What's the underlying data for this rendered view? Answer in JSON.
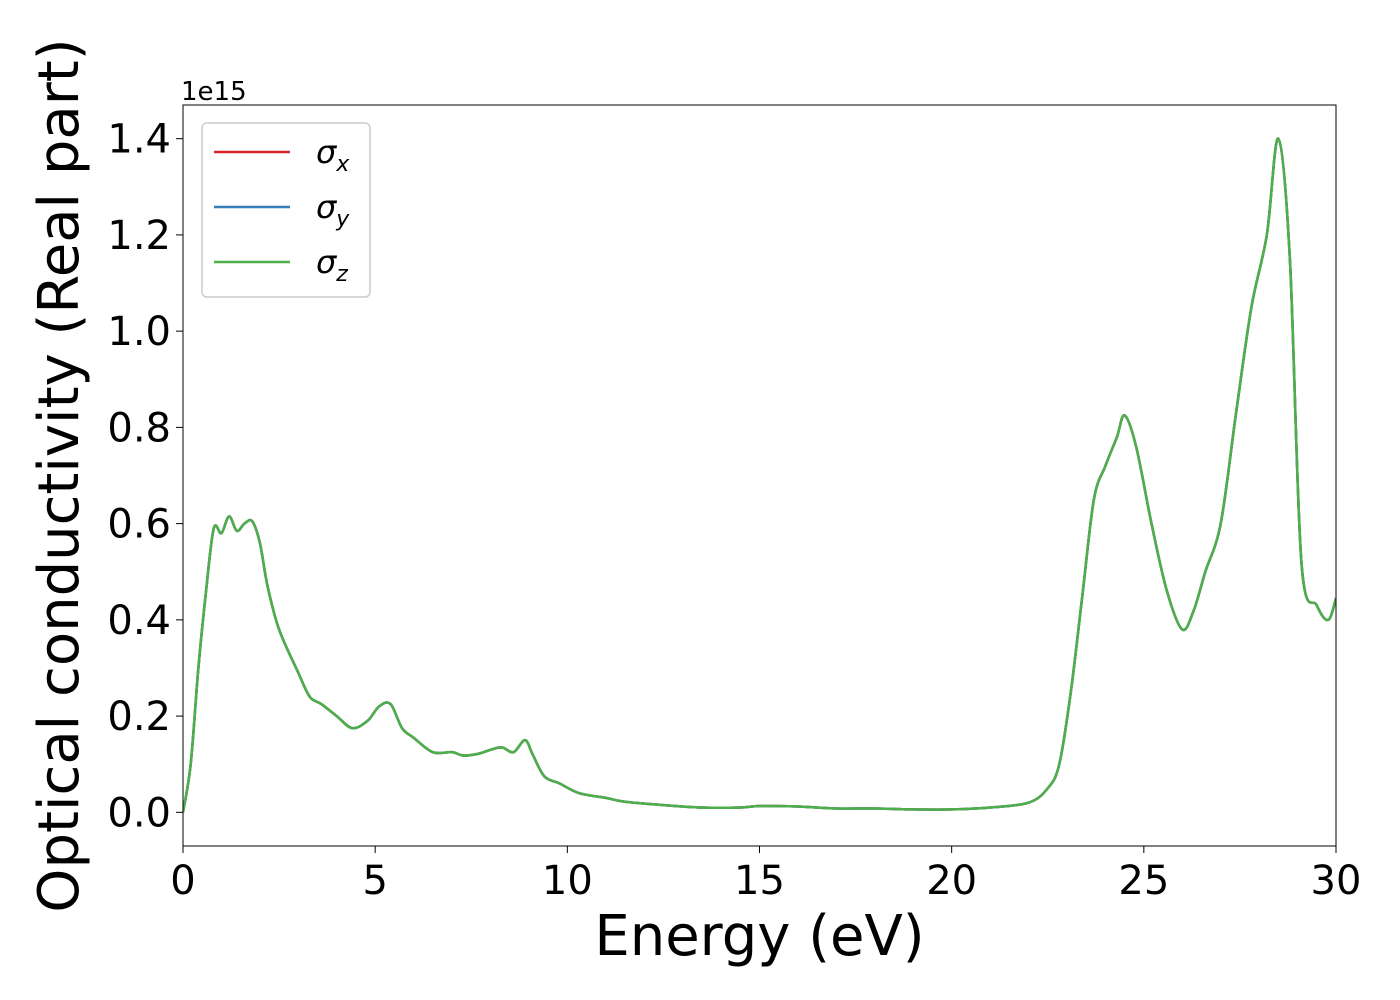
{
  "chart_data": {
    "type": "line",
    "title": "",
    "xlabel": "Energy (eV)",
    "ylabel": "Optical conductivity (Real part)",
    "y_offset_label": "1e15",
    "xlim": [
      0,
      30
    ],
    "ylim": [
      -0.07,
      1.47
    ],
    "xticks": [
      0,
      5,
      10,
      15,
      20,
      25,
      30
    ],
    "xtick_labels": [
      "0",
      "5",
      "10",
      "15",
      "20",
      "25",
      "30"
    ],
    "yticks": [
      0.0,
      0.2,
      0.4,
      0.6,
      0.8,
      1.0,
      1.2,
      1.4
    ],
    "ytick_labels": [
      "0.0",
      "0.2",
      "0.4",
      "0.6",
      "0.8",
      "1.0",
      "1.2",
      "1.4"
    ],
    "grid": false,
    "legend_position": "top-left",
    "series": [
      {
        "name": "σx",
        "symbol": "σ",
        "subscript": "x",
        "color": "#d62728",
        "x": [
          0,
          0.2,
          0.4,
          0.6,
          0.8,
          1.0,
          1.2,
          1.4,
          1.6,
          1.8,
          2.0,
          2.2,
          2.5,
          3.0,
          3.3,
          3.6,
          4.0,
          4.4,
          4.8,
          5.1,
          5.4,
          5.7,
          6.0,
          6.5,
          7.0,
          7.3,
          7.7,
          8.0,
          8.3,
          8.6,
          8.9,
          9.1,
          9.4,
          9.8,
          10.3,
          11.0,
          11.5,
          12.5,
          13.5,
          14.5,
          15.0,
          16.0,
          17.0,
          18.0,
          19.0,
          20.0,
          21.0,
          22.0,
          22.5,
          22.8,
          23.1,
          23.4,
          23.7,
          24.0,
          24.3,
          24.5,
          24.8,
          25.2,
          25.6,
          26.0,
          26.3,
          26.6,
          27.0,
          27.4,
          27.8,
          28.2,
          28.5,
          28.8,
          29.1,
          29.5,
          29.8,
          30.0
        ],
        "values": [
          0.0,
          0.1,
          0.3,
          0.46,
          0.59,
          0.58,
          0.615,
          0.585,
          0.6,
          0.605,
          0.56,
          0.47,
          0.38,
          0.29,
          0.24,
          0.225,
          0.2,
          0.175,
          0.19,
          0.22,
          0.225,
          0.175,
          0.155,
          0.125,
          0.125,
          0.118,
          0.122,
          0.13,
          0.135,
          0.125,
          0.15,
          0.12,
          0.075,
          0.06,
          0.04,
          0.03,
          0.022,
          0.015,
          0.01,
          0.01,
          0.013,
          0.012,
          0.008,
          0.008,
          0.006,
          0.006,
          0.01,
          0.02,
          0.05,
          0.1,
          0.25,
          0.45,
          0.65,
          0.72,
          0.78,
          0.825,
          0.76,
          0.6,
          0.46,
          0.38,
          0.42,
          0.5,
          0.6,
          0.83,
          1.05,
          1.2,
          1.4,
          1.15,
          0.52,
          0.43,
          0.4,
          0.445
        ]
      },
      {
        "name": "σy",
        "symbol": "σ",
        "subscript": "y",
        "color": "#377eb8",
        "x": [
          0,
          0.2,
          0.4,
          0.6,
          0.8,
          1.0,
          1.2,
          1.4,
          1.6,
          1.8,
          2.0,
          2.2,
          2.5,
          3.0,
          3.3,
          3.6,
          4.0,
          4.4,
          4.8,
          5.1,
          5.4,
          5.7,
          6.0,
          6.5,
          7.0,
          7.3,
          7.7,
          8.0,
          8.3,
          8.6,
          8.9,
          9.1,
          9.4,
          9.8,
          10.3,
          11.0,
          11.5,
          12.5,
          13.5,
          14.5,
          15.0,
          16.0,
          17.0,
          18.0,
          19.0,
          20.0,
          21.0,
          22.0,
          22.5,
          22.8,
          23.1,
          23.4,
          23.7,
          24.0,
          24.3,
          24.5,
          24.8,
          25.2,
          25.6,
          26.0,
          26.3,
          26.6,
          27.0,
          27.4,
          27.8,
          28.2,
          28.5,
          28.8,
          29.1,
          29.5,
          29.8,
          30.0
        ],
        "values": [
          0.0,
          0.1,
          0.3,
          0.46,
          0.59,
          0.58,
          0.615,
          0.585,
          0.6,
          0.605,
          0.56,
          0.47,
          0.38,
          0.29,
          0.24,
          0.225,
          0.2,
          0.175,
          0.19,
          0.22,
          0.225,
          0.175,
          0.155,
          0.125,
          0.125,
          0.118,
          0.122,
          0.13,
          0.135,
          0.125,
          0.15,
          0.12,
          0.075,
          0.06,
          0.04,
          0.03,
          0.022,
          0.015,
          0.01,
          0.01,
          0.013,
          0.012,
          0.008,
          0.008,
          0.006,
          0.006,
          0.01,
          0.02,
          0.05,
          0.1,
          0.25,
          0.45,
          0.65,
          0.72,
          0.78,
          0.825,
          0.76,
          0.6,
          0.46,
          0.38,
          0.42,
          0.5,
          0.6,
          0.83,
          1.05,
          1.2,
          1.4,
          1.15,
          0.52,
          0.43,
          0.4,
          0.445
        ]
      },
      {
        "name": "σz",
        "symbol": "σ",
        "subscript": "z",
        "color": "#4daf4a",
        "x": [
          0,
          0.2,
          0.4,
          0.6,
          0.8,
          1.0,
          1.2,
          1.4,
          1.6,
          1.8,
          2.0,
          2.2,
          2.5,
          3.0,
          3.3,
          3.6,
          4.0,
          4.4,
          4.8,
          5.1,
          5.4,
          5.7,
          6.0,
          6.5,
          7.0,
          7.3,
          7.7,
          8.0,
          8.3,
          8.6,
          8.9,
          9.1,
          9.4,
          9.8,
          10.3,
          11.0,
          11.5,
          12.5,
          13.5,
          14.5,
          15.0,
          16.0,
          17.0,
          18.0,
          19.0,
          20.0,
          21.0,
          22.0,
          22.5,
          22.8,
          23.1,
          23.4,
          23.7,
          24.0,
          24.3,
          24.5,
          24.8,
          25.2,
          25.6,
          26.0,
          26.3,
          26.6,
          27.0,
          27.4,
          27.8,
          28.2,
          28.5,
          28.8,
          29.1,
          29.5,
          29.8,
          30.0
        ],
        "values": [
          0.0,
          0.1,
          0.3,
          0.46,
          0.59,
          0.58,
          0.615,
          0.585,
          0.6,
          0.605,
          0.56,
          0.47,
          0.38,
          0.29,
          0.24,
          0.225,
          0.2,
          0.175,
          0.19,
          0.22,
          0.225,
          0.175,
          0.155,
          0.125,
          0.125,
          0.118,
          0.122,
          0.13,
          0.135,
          0.125,
          0.15,
          0.12,
          0.075,
          0.06,
          0.04,
          0.03,
          0.022,
          0.015,
          0.01,
          0.01,
          0.013,
          0.012,
          0.008,
          0.008,
          0.006,
          0.006,
          0.01,
          0.02,
          0.05,
          0.1,
          0.25,
          0.45,
          0.65,
          0.72,
          0.78,
          0.825,
          0.76,
          0.6,
          0.46,
          0.38,
          0.42,
          0.5,
          0.6,
          0.83,
          1.05,
          1.2,
          1.4,
          1.15,
          0.52,
          0.43,
          0.4,
          0.445
        ]
      }
    ]
  }
}
